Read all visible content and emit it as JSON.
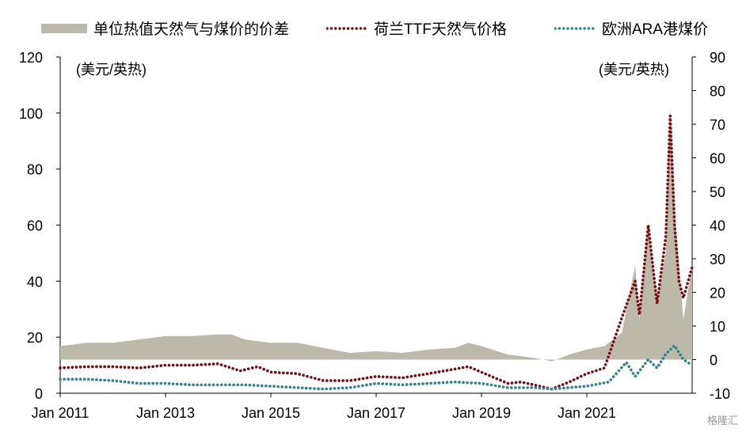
{
  "chart_data": {
    "type": "area+line",
    "series": [
      {
        "name": "单位热值天然气与煤价的价差",
        "axis": "right",
        "style": "area",
        "color": "#bdb9a9",
        "points": [
          [
            "2011-01",
            4
          ],
          [
            "2011-07",
            5
          ],
          [
            "2012-01",
            5
          ],
          [
            "2012-07",
            6
          ],
          [
            "2013-01",
            7
          ],
          [
            "2013-07",
            7
          ],
          [
            "2014-01",
            7.5
          ],
          [
            "2014-04",
            7.5
          ],
          [
            "2014-07",
            6
          ],
          [
            "2014-10",
            5.5
          ],
          [
            "2015-01",
            5
          ],
          [
            "2015-07",
            5
          ],
          [
            "2016-01",
            3.5
          ],
          [
            "2016-07",
            2
          ],
          [
            "2017-01",
            2.5
          ],
          [
            "2017-07",
            2
          ],
          [
            "2018-01",
            3
          ],
          [
            "2018-07",
            3.5
          ],
          [
            "2018-10",
            5
          ],
          [
            "2019-01",
            4
          ],
          [
            "2019-07",
            1.5
          ],
          [
            "2020-01",
            0.5
          ],
          [
            "2020-05",
            -0.5
          ],
          [
            "2020-09",
            1.5
          ],
          [
            "2021-01",
            3
          ],
          [
            "2021-05",
            4
          ],
          [
            "2021-09",
            8
          ],
          [
            "2021-12",
            28
          ],
          [
            "2022-01",
            12
          ],
          [
            "2022-03",
            40
          ],
          [
            "2022-05",
            18
          ],
          [
            "2022-07",
            32
          ],
          [
            "2022-08",
            75
          ],
          [
            "2022-09",
            45
          ],
          [
            "2022-11",
            12
          ],
          [
            "2023-01",
            28
          ]
        ]
      },
      {
        "name": "荷兰TTF天然气价格",
        "axis": "left",
        "style": "dotted",
        "color": "#7a0c10",
        "points": [
          [
            "2011-01",
            9
          ],
          [
            "2011-07",
            9.5
          ],
          [
            "2012-01",
            9.5
          ],
          [
            "2012-07",
            9
          ],
          [
            "2013-01",
            10
          ],
          [
            "2013-07",
            10
          ],
          [
            "2014-01",
            10.5
          ],
          [
            "2014-06",
            8
          ],
          [
            "2014-10",
            9.5
          ],
          [
            "2015-01",
            7.5
          ],
          [
            "2015-07",
            7
          ],
          [
            "2016-01",
            4.5
          ],
          [
            "2016-07",
            4.5
          ],
          [
            "2017-01",
            6
          ],
          [
            "2017-07",
            5.5
          ],
          [
            "2018-01",
            7
          ],
          [
            "2018-10",
            9.5
          ],
          [
            "2019-01",
            7.5
          ],
          [
            "2019-07",
            3.5
          ],
          [
            "2019-10",
            4
          ],
          [
            "2020-01",
            3
          ],
          [
            "2020-05",
            1.5
          ],
          [
            "2020-09",
            4
          ],
          [
            "2021-01",
            7
          ],
          [
            "2021-05",
            9
          ],
          [
            "2021-09",
            27
          ],
          [
            "2021-12",
            40
          ],
          [
            "2022-01",
            28
          ],
          [
            "2022-03",
            60
          ],
          [
            "2022-05",
            32
          ],
          [
            "2022-07",
            56
          ],
          [
            "2022-08",
            99
          ],
          [
            "2022-09",
            60
          ],
          [
            "2022-10",
            40
          ],
          [
            "2022-11",
            34
          ],
          [
            "2023-01",
            45
          ]
        ]
      },
      {
        "name": "欧洲ARA港煤价",
        "axis": "left",
        "style": "dotted",
        "color": "#2e8491",
        "points": [
          [
            "2011-01",
            5
          ],
          [
            "2011-07",
            5
          ],
          [
            "2012-01",
            4.5
          ],
          [
            "2012-07",
            3.5
          ],
          [
            "2013-01",
            3.5
          ],
          [
            "2013-07",
            3
          ],
          [
            "2014-01",
            3
          ],
          [
            "2014-07",
            3
          ],
          [
            "2015-01",
            2.5
          ],
          [
            "2015-07",
            2
          ],
          [
            "2016-01",
            1.5
          ],
          [
            "2016-07",
            2
          ],
          [
            "2017-01",
            3.5
          ],
          [
            "2017-07",
            3
          ],
          [
            "2018-01",
            3.5
          ],
          [
            "2018-07",
            4
          ],
          [
            "2019-01",
            3.5
          ],
          [
            "2019-07",
            2
          ],
          [
            "2020-01",
            2
          ],
          [
            "2020-05",
            1.5
          ],
          [
            "2020-09",
            2
          ],
          [
            "2021-01",
            2.5
          ],
          [
            "2021-06",
            4
          ],
          [
            "2021-10",
            11
          ],
          [
            "2021-12",
            6
          ],
          [
            "2022-03",
            12
          ],
          [
            "2022-05",
            9
          ],
          [
            "2022-07",
            14
          ],
          [
            "2022-09",
            17
          ],
          [
            "2022-11",
            12
          ],
          [
            "2023-01",
            10
          ]
        ]
      }
    ],
    "x_ticks": [
      "Jan 2011",
      "Jan 2013",
      "Jan 2015",
      "Jan 2017",
      "Jan 2019",
      "Jan 2021"
    ],
    "y_left": {
      "min": 0,
      "max": 120,
      "ticks": [
        "0",
        "20",
        "40",
        "60",
        "80",
        "100",
        "120"
      ],
      "unit": "(美元/英热)"
    },
    "y_right": {
      "min": -10,
      "max": 90,
      "ticks": [
        "-10",
        "0",
        "10",
        "20",
        "30",
        "40",
        "50",
        "60",
        "70",
        "80",
        "90"
      ],
      "unit": "(美元/英热)"
    },
    "x_range": [
      "2011-01",
      "2023-01"
    ],
    "legend_position": "top"
  },
  "watermark": "格隆汇"
}
